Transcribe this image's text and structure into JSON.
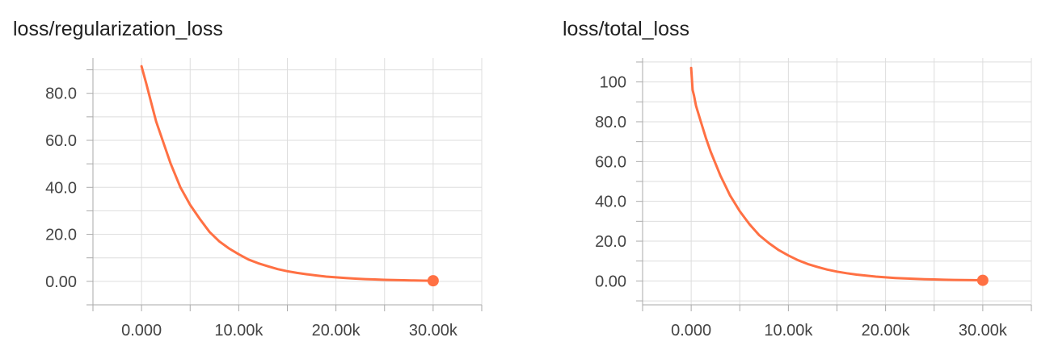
{
  "chart_data": [
    {
      "type": "line",
      "title": "loss/regularization_loss",
      "xlabel": "",
      "ylabel": "",
      "xlim": [
        -5000,
        35000
      ],
      "ylim": [
        -10,
        95
      ],
      "x_ticks": [
        0,
        10000,
        20000,
        30000
      ],
      "x_tick_labels": [
        "0.000",
        "10.00k",
        "20.00k",
        "30.00k"
      ],
      "y_ticks": [
        0,
        20,
        40,
        60,
        80
      ],
      "y_tick_labels": [
        "0.00",
        "20.0",
        "40.0",
        "60.0",
        "80.0"
      ],
      "grid": true,
      "line_color": "#ff7043",
      "series": [
        {
          "x": [
            0,
            500,
            1000,
            1500,
            2000,
            2500,
            3000,
            3500,
            4000,
            5000,
            6000,
            7000,
            8000,
            9000,
            10000,
            11000,
            12000,
            13000,
            14000,
            15000,
            16000,
            17000,
            18000,
            19000,
            20000,
            21000,
            22000,
            23000,
            24000,
            25000,
            26000,
            27000,
            28000,
            29000,
            30000
          ],
          "y": [
            91.5,
            84,
            76,
            68,
            62,
            56,
            50,
            45,
            40,
            32.5,
            26.5,
            21,
            17,
            14,
            11.5,
            9.3,
            7.7,
            6.4,
            5.2,
            4.3,
            3.6,
            3.0,
            2.5,
            2.0,
            1.7,
            1.4,
            1.15,
            0.95,
            0.8,
            0.65,
            0.55,
            0.45,
            0.35,
            0.3,
            0.25
          ]
        }
      ]
    },
    {
      "type": "line",
      "title": "loss/total_loss",
      "xlabel": "",
      "ylabel": "",
      "xlim": [
        -5000,
        35000
      ],
      "ylim": [
        -12,
        112
      ],
      "x_ticks": [
        0,
        10000,
        20000,
        30000
      ],
      "x_tick_labels": [
        "0.000",
        "10.00k",
        "20.00k",
        "30.00k"
      ],
      "y_ticks": [
        0,
        20,
        40,
        60,
        80,
        100
      ],
      "y_tick_labels": [
        "0.00",
        "20.0",
        "40.0",
        "60.0",
        "80.0",
        "100"
      ],
      "grid": true,
      "line_color": "#ff7043",
      "series": [
        {
          "x": [
            0,
            150,
            300,
            500,
            1000,
            1500,
            2000,
            2500,
            3000,
            3500,
            4000,
            5000,
            6000,
            7000,
            8000,
            9000,
            10000,
            11000,
            12000,
            13000,
            14000,
            15000,
            16000,
            17000,
            18000,
            19000,
            20000,
            21000,
            22000,
            23000,
            24000,
            25000,
            26000,
            27000,
            28000,
            29000,
            30000
          ],
          "y": [
            107,
            96,
            93,
            88,
            80,
            72,
            65,
            59,
            53,
            48,
            43,
            35,
            28.5,
            23,
            19,
            15.5,
            12.8,
            10.4,
            8.5,
            7.0,
            5.7,
            4.7,
            3.9,
            3.2,
            2.7,
            2.2,
            1.8,
            1.5,
            1.25,
            1.05,
            0.9,
            0.75,
            0.62,
            0.52,
            0.44,
            0.38,
            0.32
          ]
        }
      ]
    }
  ]
}
